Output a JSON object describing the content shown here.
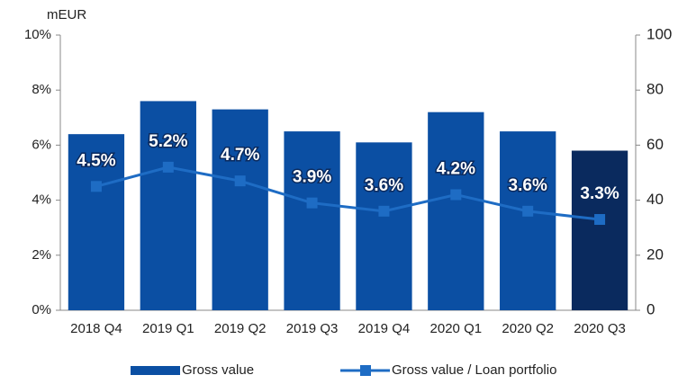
{
  "chart_data": {
    "type": "bar_line",
    "y_unit_label": "mEUR",
    "categories": [
      "2018 Q4",
      "2019 Q1",
      "2019 Q2",
      "2019 Q3",
      "2019 Q4",
      "2020 Q1",
      "2020 Q2",
      "2020 Q3"
    ],
    "series": [
      {
        "name": "Gross value",
        "type": "bar",
        "axis": "y2",
        "color": "#0b4fa3",
        "colors": [
          "#0b4fa3",
          "#0b4fa3",
          "#0b4fa3",
          "#0b4fa3",
          "#0b4fa3",
          "#0b4fa3",
          "#0b4fa3",
          "#0a2a5e"
        ],
        "values": [
          64,
          76,
          73,
          65,
          61,
          72,
          65,
          58
        ]
      },
      {
        "name": "Gross value / Loan portfolio",
        "type": "line",
        "axis": "y",
        "color": "#1e6cc4",
        "values": [
          4.5,
          5.2,
          4.7,
          3.9,
          3.6,
          4.2,
          3.6,
          3.3
        ],
        "value_labels": [
          "4.5%",
          "5.2%",
          "4.7%",
          "3.9%",
          "3.6%",
          "4.2%",
          "3.6%",
          "3.3%"
        ]
      }
    ],
    "ylim": [
      0,
      10
    ],
    "yticks": [
      {
        "value": 0,
        "label": "0%"
      },
      {
        "value": 2,
        "label": "2%"
      },
      {
        "value": 4,
        "label": "4%"
      },
      {
        "value": 6,
        "label": "6%"
      },
      {
        "value": 8,
        "label": "8%"
      },
      {
        "value": 10,
        "label": "10%"
      }
    ],
    "y2lim": [
      0,
      100
    ],
    "y2ticks": [
      0,
      20,
      40,
      60,
      80,
      100
    ],
    "legend": "bottom"
  }
}
